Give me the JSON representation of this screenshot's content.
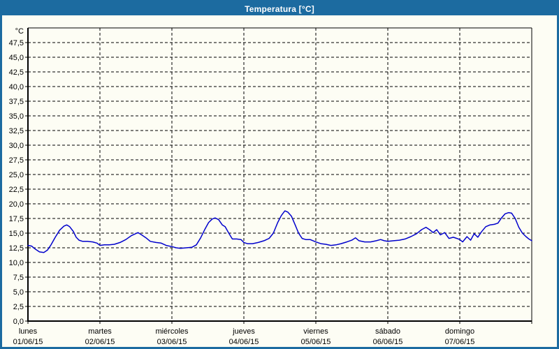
{
  "window": {
    "title": "Temperatura [°C]",
    "titlebar_color": "#1c6ba0",
    "border_color": "#1c6ba0",
    "background_color": "#fdfdf4"
  },
  "chart_data": {
    "type": "line",
    "title": "Temperatura [°C]",
    "unit_label": "°C",
    "ylim": [
      0,
      50
    ],
    "y_tick_step": 2.5,
    "y_tick_labels": [
      "0,0",
      "2,5",
      "5,0",
      "7,5",
      "10,0",
      "12,5",
      "15,0",
      "17,5",
      "20,0",
      "22,5",
      "25,0",
      "27,5",
      "30,0",
      "32,5",
      "35,0",
      "37,5",
      "40,0",
      "42,5",
      "45,0",
      "47,5"
    ],
    "x_days": [
      {
        "name": "lunes",
        "date": "01/06/15"
      },
      {
        "name": "martes",
        "date": "02/06/15"
      },
      {
        "name": "miércoles",
        "date": "03/06/15"
      },
      {
        "name": "jueves",
        "date": "04/06/15"
      },
      {
        "name": "viernes",
        "date": "05/06/15"
      },
      {
        "name": "sábado",
        "date": "06/06/15"
      },
      {
        "name": "domingo",
        "date": "07/06/15"
      }
    ],
    "grid": {
      "horizontal": true,
      "vertical": true,
      "style": "dashed"
    },
    "legend": "none",
    "line_color": "#0000cc",
    "axis_color": "#000000",
    "series": [
      {
        "name": "Temperatura",
        "points": [
          [
            0.0,
            12.9
          ],
          [
            0.05,
            12.8
          ],
          [
            0.1,
            12.3
          ],
          [
            0.16,
            11.8
          ],
          [
            0.22,
            11.7
          ],
          [
            0.27,
            12.1
          ],
          [
            0.32,
            13.0
          ],
          [
            0.38,
            14.3
          ],
          [
            0.44,
            15.5
          ],
          [
            0.5,
            16.2
          ],
          [
            0.54,
            16.4
          ],
          [
            0.58,
            16.1
          ],
          [
            0.63,
            15.3
          ],
          [
            0.67,
            14.3
          ],
          [
            0.71,
            13.8
          ],
          [
            0.76,
            13.6
          ],
          [
            0.83,
            13.6
          ],
          [
            0.9,
            13.5
          ],
          [
            0.96,
            13.3
          ],
          [
            1.0,
            12.9
          ],
          [
            1.06,
            13.0
          ],
          [
            1.13,
            13.0
          ],
          [
            1.2,
            13.1
          ],
          [
            1.28,
            13.4
          ],
          [
            1.36,
            13.9
          ],
          [
            1.44,
            14.6
          ],
          [
            1.53,
            15.1
          ],
          [
            1.58,
            14.7
          ],
          [
            1.64,
            14.2
          ],
          [
            1.7,
            13.6
          ],
          [
            1.78,
            13.4
          ],
          [
            1.85,
            13.3
          ],
          [
            1.92,
            12.9
          ],
          [
            2.0,
            12.7
          ],
          [
            2.06,
            12.5
          ],
          [
            2.12,
            12.4
          ],
          [
            2.2,
            12.5
          ],
          [
            2.28,
            12.6
          ],
          [
            2.34,
            13.0
          ],
          [
            2.4,
            14.2
          ],
          [
            2.46,
            15.7
          ],
          [
            2.51,
            16.8
          ],
          [
            2.56,
            17.4
          ],
          [
            2.6,
            17.6
          ],
          [
            2.65,
            17.3
          ],
          [
            2.7,
            16.4
          ],
          [
            2.74,
            16.1
          ],
          [
            2.79,
            15.0
          ],
          [
            2.84,
            14.0
          ],
          [
            2.9,
            14.0
          ],
          [
            2.96,
            13.9
          ],
          [
            3.0,
            13.4
          ],
          [
            3.05,
            13.2
          ],
          [
            3.12,
            13.2
          ],
          [
            3.2,
            13.4
          ],
          [
            3.28,
            13.7
          ],
          [
            3.35,
            14.1
          ],
          [
            3.41,
            15.0
          ],
          [
            3.47,
            16.8
          ],
          [
            3.52,
            18.0
          ],
          [
            3.57,
            18.8
          ],
          [
            3.61,
            18.6
          ],
          [
            3.66,
            17.9
          ],
          [
            3.71,
            16.5
          ],
          [
            3.76,
            15.0
          ],
          [
            3.81,
            14.1
          ],
          [
            3.86,
            13.9
          ],
          [
            3.92,
            13.9
          ],
          [
            4.0,
            13.5
          ],
          [
            4.07,
            13.2
          ],
          [
            4.14,
            13.1
          ],
          [
            4.21,
            12.9
          ],
          [
            4.28,
            13.0
          ],
          [
            4.35,
            13.2
          ],
          [
            4.43,
            13.5
          ],
          [
            4.5,
            13.8
          ],
          [
            4.55,
            14.2
          ],
          [
            4.6,
            13.7
          ],
          [
            4.68,
            13.5
          ],
          [
            4.76,
            13.5
          ],
          [
            4.84,
            13.7
          ],
          [
            4.9,
            13.9
          ],
          [
            4.95,
            13.7
          ],
          [
            5.0,
            13.6
          ],
          [
            5.08,
            13.7
          ],
          [
            5.16,
            13.8
          ],
          [
            5.24,
            14.0
          ],
          [
            5.32,
            14.4
          ],
          [
            5.4,
            14.9
          ],
          [
            5.47,
            15.6
          ],
          [
            5.53,
            16.0
          ],
          [
            5.58,
            15.6
          ],
          [
            5.63,
            15.1
          ],
          [
            5.68,
            15.6
          ],
          [
            5.73,
            14.7
          ],
          [
            5.79,
            15.1
          ],
          [
            5.85,
            14.1
          ],
          [
            5.91,
            14.3
          ],
          [
            5.96,
            14.1
          ],
          [
            6.0,
            13.9
          ],
          [
            6.04,
            13.5
          ],
          [
            6.1,
            14.4
          ],
          [
            6.15,
            13.8
          ],
          [
            6.2,
            14.9
          ],
          [
            6.25,
            14.3
          ],
          [
            6.3,
            15.2
          ],
          [
            6.36,
            16.1
          ],
          [
            6.42,
            16.4
          ],
          [
            6.48,
            16.5
          ],
          [
            6.53,
            16.7
          ],
          [
            6.58,
            17.6
          ],
          [
            6.63,
            18.3
          ],
          [
            6.68,
            18.5
          ],
          [
            6.72,
            18.4
          ],
          [
            6.77,
            17.5
          ],
          [
            6.82,
            16.0
          ],
          [
            6.87,
            15.0
          ],
          [
            6.92,
            14.4
          ],
          [
            6.96,
            14.0
          ],
          [
            7.0,
            13.7
          ]
        ]
      }
    ]
  }
}
